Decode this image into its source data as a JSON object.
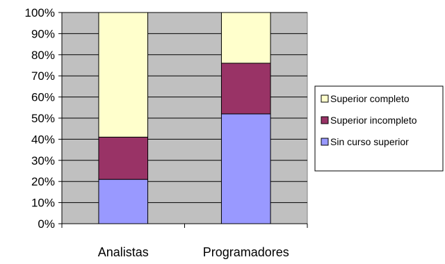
{
  "chart_data": {
    "type": "bar",
    "stacked": true,
    "percent": true,
    "categories": [
      "Analistas",
      "Programadores"
    ],
    "series": [
      {
        "name": "Sin curso superior",
        "values": [
          21,
          52
        ],
        "color": "#9999ff"
      },
      {
        "name": "Superior incompleto",
        "values": [
          20,
          24
        ],
        "color": "#993366"
      },
      {
        "name": "Superior completo",
        "values": [
          59,
          24
        ],
        "color": "#ffffcc"
      }
    ],
    "yticks": [
      "0%",
      "10%",
      "20%",
      "30%",
      "40%",
      "50%",
      "60%",
      "70%",
      "80%",
      "90%",
      "100%"
    ],
    "ylim": [
      0,
      100
    ],
    "plot_background": "#c0c0c0",
    "grid": true,
    "legend": {
      "position": "right",
      "entries": [
        "Superior completo",
        "Superior incompleto",
        "Sin curso superior"
      ]
    }
  }
}
